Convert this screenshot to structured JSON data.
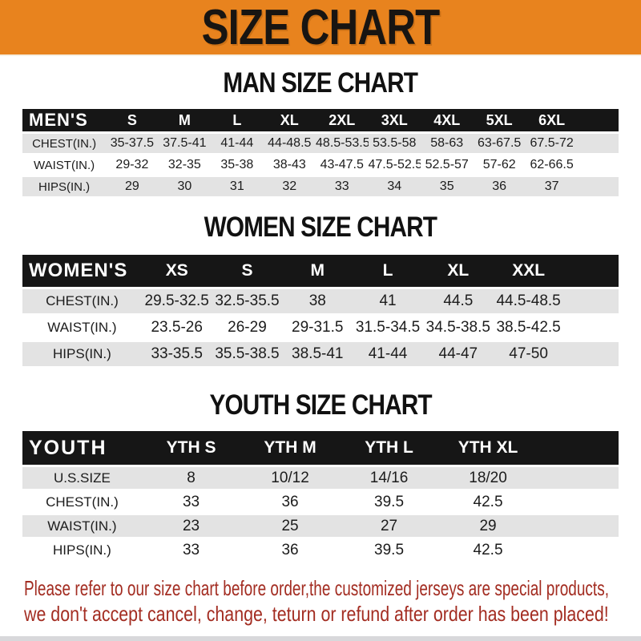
{
  "banner": {
    "title": "SIZE CHART"
  },
  "colors": {
    "banner_orange": "#E8831E",
    "table_header_black": "#161616",
    "row_stripe_gray": "#E3E3E3",
    "footer_red": "#A32D22",
    "bottom_strip_gray": "#D8D8DB"
  },
  "sections": [
    {
      "title": "MAN SIZE CHART",
      "header": {
        "label": "MEN'S",
        "columns": [
          "S",
          "M",
          "L",
          "XL",
          "2XL",
          "3XL",
          "4XL",
          "5XL",
          "6XL"
        ]
      },
      "rows": [
        {
          "label": "CHEST(IN.)",
          "values": [
            "35-37.5",
            "37.5-41",
            "41-44",
            "44-48.5",
            "48.5-53.5",
            "53.5-58",
            "58-63",
            "63-67.5",
            "67.5-72"
          ]
        },
        {
          "label": "WAIST(IN.)",
          "values": [
            "29-32",
            "32-35",
            "35-38",
            "38-43",
            "43-47.5",
            "47.5-52.5",
            "52.5-57",
            "57-62",
            "62-66.5"
          ]
        },
        {
          "label": "HIPS(IN.)",
          "values": [
            "29",
            "30",
            "31",
            "32",
            "33",
            "34",
            "35",
            "36",
            "37"
          ]
        }
      ]
    },
    {
      "title": "WOMEN SIZE CHART",
      "header": {
        "label": "WOMEN'S",
        "columns": [
          "XS",
          "S",
          "M",
          "L",
          "XL",
          "XXL"
        ]
      },
      "rows": [
        {
          "label": "CHEST(IN.)",
          "values": [
            "29.5-32.5",
            "32.5-35.5",
            "38",
            "41",
            "44.5",
            "44.5-48.5"
          ]
        },
        {
          "label": "WAIST(IN.)",
          "values": [
            "23.5-26",
            "26-29",
            "29-31.5",
            "31.5-34.5",
            "34.5-38.5",
            "38.5-42.5"
          ]
        },
        {
          "label": "HIPS(IN.)",
          "values": [
            "33-35.5",
            "35.5-38.5",
            "38.5-41",
            "41-44",
            "44-47",
            "47-50"
          ]
        }
      ]
    },
    {
      "title": "YOUTH SIZE CHART",
      "header": {
        "label": "YOUTH",
        "columns": [
          "YTH S",
          "YTH M",
          "YTH L",
          "YTH XL"
        ]
      },
      "rows": [
        {
          "label": "U.S.SIZE",
          "values": [
            "8",
            "10/12",
            "14/16",
            "18/20"
          ]
        },
        {
          "label": "CHEST(IN.)",
          "values": [
            "33",
            "36",
            "39.5",
            "42.5"
          ]
        },
        {
          "label": "WAIST(IN.)",
          "values": [
            "23",
            "25",
            "27",
            "29"
          ]
        },
        {
          "label": "HIPS(IN.)",
          "values": [
            "33",
            "36",
            "39.5",
            "42.5"
          ]
        }
      ]
    }
  ],
  "footer": {
    "line1": "Please refer to our size chart before order,the customized jerseys are special products,",
    "line2": "we don't accept cancel, change, teturn or refund after order has been placed!"
  }
}
